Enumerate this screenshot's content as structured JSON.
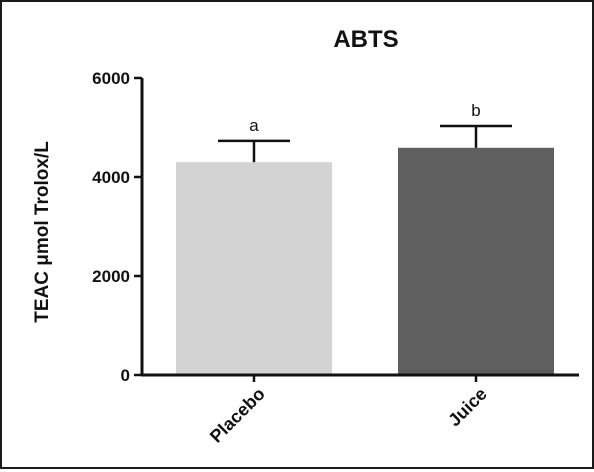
{
  "chart_data": {
    "type": "bar",
    "title": "ABTS",
    "xlabel": "",
    "ylabel": "TEAC μmol Trolox/L",
    "categories": [
      "Placebo",
      "Juice"
    ],
    "values": [
      4300,
      4590
    ],
    "errors": [
      430,
      440
    ],
    "significance_labels": [
      "a",
      "b"
    ],
    "colors": [
      "#d3d3d3",
      "#5f5f5f"
    ],
    "ylim": [
      0,
      6000
    ],
    "yticks": [
      0,
      2000,
      4000,
      6000
    ],
    "ytick_labels": [
      "0",
      "2000",
      "4000",
      "6000"
    ],
    "grid": false
  }
}
